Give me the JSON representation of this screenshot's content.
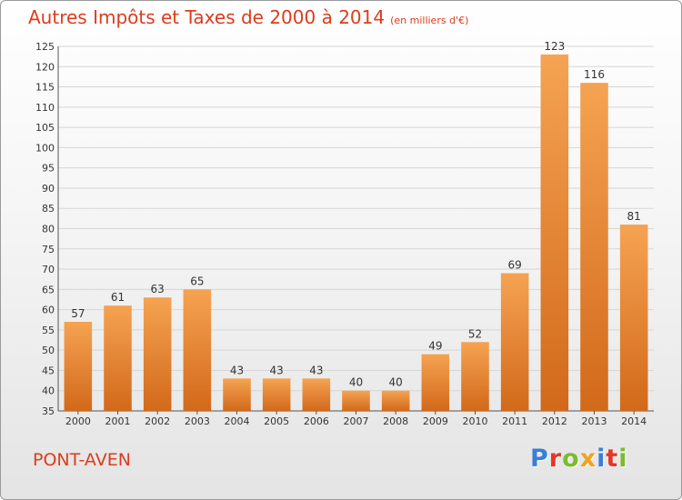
{
  "title": "Autres Impôts et Taxes de 2000 à 2014",
  "title_unit": "(en milliers d'€)",
  "town": "PONT-AVEN",
  "brand": {
    "letters": [
      "P",
      "r",
      "o",
      "x",
      "i",
      "t",
      "i"
    ],
    "colors": [
      "#3a7fd6",
      "#e8352a",
      "#7dbb2e",
      "#f2a11f",
      "#3a7fd6",
      "#e8352a",
      "#7dbb2e"
    ]
  },
  "colors": {
    "title": "#dc3c1c",
    "bar_top": "#f5a352",
    "bar_bottom": "#d2691a",
    "grid": "#d6d6d6"
  },
  "chart_data": {
    "type": "bar",
    "title": "Autres Impôts et Taxes de 2000 à 2014",
    "categories": [
      "2000",
      "2001",
      "2002",
      "2003",
      "2004",
      "2005",
      "2006",
      "2007",
      "2008",
      "2009",
      "2010",
      "2011",
      "2012",
      "2013",
      "2014"
    ],
    "values": [
      57,
      61,
      63,
      65,
      43,
      43,
      43,
      40,
      40,
      49,
      52,
      69,
      123,
      116,
      81
    ],
    "ylim": [
      35,
      125
    ],
    "yticks": [
      35,
      40,
      45,
      50,
      55,
      60,
      65,
      70,
      75,
      80,
      85,
      90,
      95,
      100,
      105,
      110,
      115,
      120,
      125
    ],
    "grid": true,
    "xlabel": "",
    "ylabel": ""
  }
}
